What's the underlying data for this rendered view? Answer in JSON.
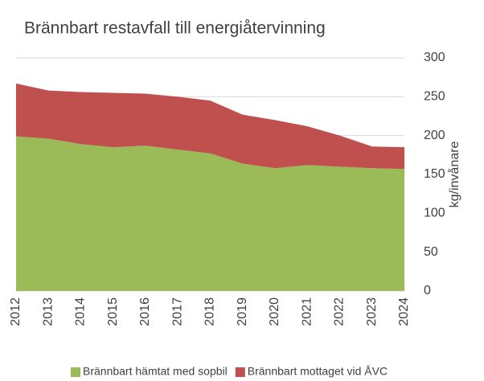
{
  "chart_data": {
    "type": "stacked-area",
    "title": "Brännbart restavfall till energiåtervinning",
    "y_label": "kg/invånare",
    "categories": [
      "2012",
      "2013",
      "2014",
      "2015",
      "2016",
      "2017",
      "2018",
      "2019",
      "2020",
      "2021",
      "2022",
      "2023",
      "2024"
    ],
    "series": [
      {
        "name": "Brännbart hämtat med sopbil",
        "color": "#9bbb59",
        "values": [
          199,
          196,
          189,
          185,
          187,
          182,
          177,
          164,
          158,
          162,
          160,
          158,
          157
        ]
      },
      {
        "name": "Brännbart mottaget vid ÅVC",
        "color": "#c0504d",
        "values": [
          68,
          62,
          67,
          70,
          67,
          68,
          68,
          63,
          62,
          50,
          40,
          28,
          28
        ]
      }
    ],
    "ylim": [
      0,
      300
    ],
    "yticks": [
      0,
      50,
      100,
      150,
      200,
      250,
      300
    ],
    "grid": true,
    "legend": "bottom"
  }
}
